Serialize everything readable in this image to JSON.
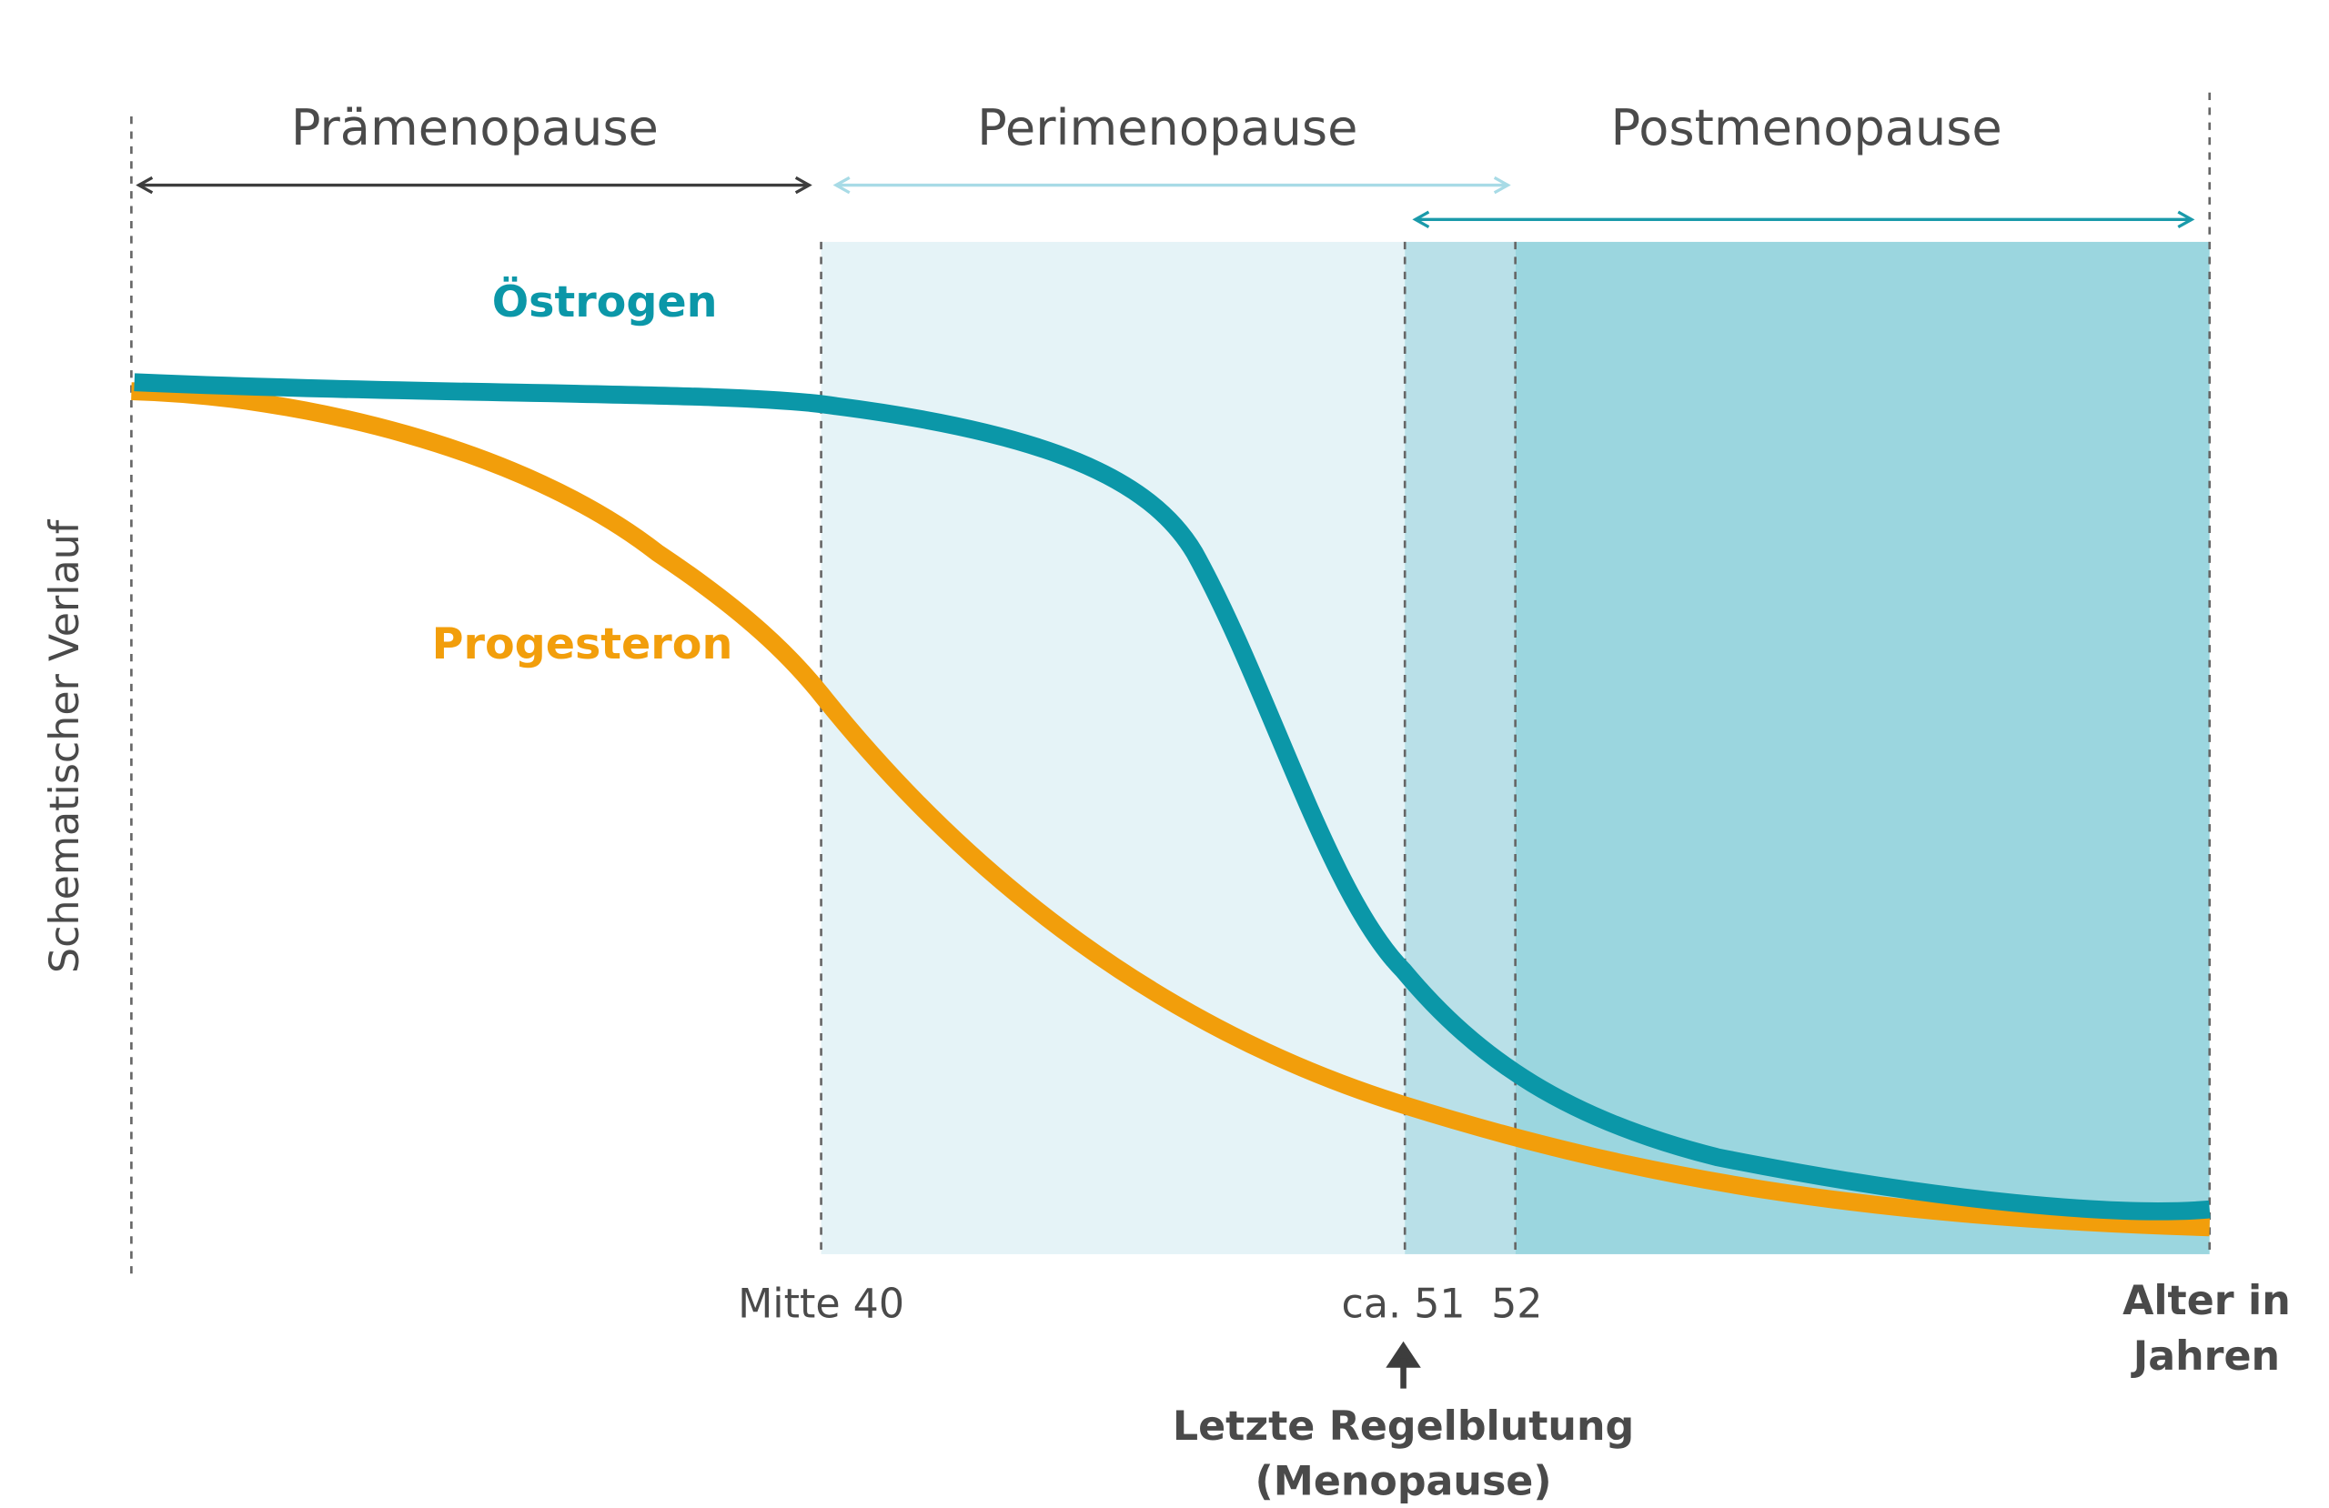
{
  "phases": {
    "pre": "Prämenopause",
    "peri": "Perimenopause",
    "post": "Postmenopause"
  },
  "curves": {
    "estrogen": "Östrogen",
    "progesterone": "Progesteron"
  },
  "y_axis_label": "Schematischer Verlauf",
  "x_labels": {
    "mid40": "Mitte 40",
    "ca51": "ca. 51",
    "age52": "52",
    "axis_line1": "Alter in",
    "axis_line2": "Jahren"
  },
  "annotation": {
    "line1": "Letzte Regelblutung",
    "line2": "(Menopause)"
  }
}
